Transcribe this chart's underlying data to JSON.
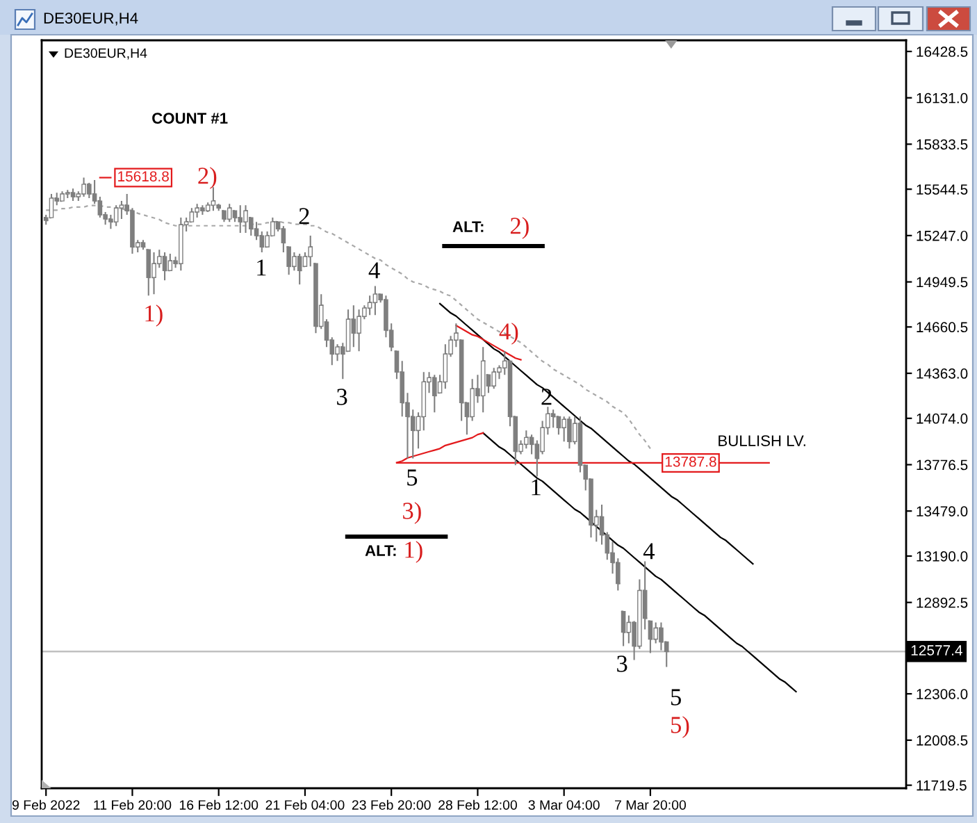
{
  "chart_data": {
    "type": "candlestick",
    "title": "DE30EUR,H4",
    "subtitle": "DE30EUR,H4",
    "categories": [
      "9 Feb 2022",
      null,
      null,
      null,
      null,
      null,
      null,
      null,
      null,
      null,
      null,
      null,
      null,
      null,
      null,
      null,
      "11 Feb 20:00",
      null,
      null,
      null,
      null,
      null,
      null,
      null,
      null,
      null,
      null,
      null,
      null,
      null,
      null,
      null,
      "16 Feb 12:00",
      null,
      null,
      null,
      null,
      null,
      null,
      null,
      null,
      null,
      null,
      null,
      null,
      null,
      null,
      null,
      "21 Feb 04:00",
      null,
      null,
      null,
      null,
      null,
      null,
      null,
      null,
      null,
      null,
      null,
      null,
      null,
      null,
      null,
      "23 Feb 20:00",
      null,
      null,
      null,
      null,
      null,
      null,
      null,
      null,
      null,
      null,
      null,
      null,
      null,
      null,
      null,
      "28 Feb 12:00",
      null,
      null,
      null,
      null,
      null,
      null,
      null,
      null,
      null,
      null,
      null,
      null,
      null,
      null,
      null,
      "3 Mar 04:00",
      null,
      null,
      null,
      null,
      null,
      null,
      null,
      null,
      null,
      null,
      null,
      null,
      null,
      null,
      null,
      "7 Mar 20:00",
      null,
      null,
      null,
      null,
      null,
      null,
      null,
      null,
      null,
      null,
      null,
      null,
      null,
      null,
      null,
      null,
      null,
      null,
      null,
      null,
      null,
      null,
      null,
      null,
      null,
      null,
      null,
      null,
      null,
      null,
      null,
      null,
      null,
      null,
      null,
      null,
      null,
      null,
      null,
      null,
      null,
      null,
      null,
      null,
      null,
      null,
      null
    ],
    "ohlc": [
      [
        15362,
        15380,
        15317,
        15344
      ],
      [
        15362,
        15514,
        15362,
        15487
      ],
      [
        15487,
        15522,
        15442,
        15469
      ],
      [
        15469,
        15531,
        15469,
        15514
      ],
      [
        15514,
        15540,
        15487,
        15522
      ],
      [
        15522,
        15549,
        15469,
        15496
      ],
      [
        15496,
        15531,
        15469,
        15514
      ],
      [
        15514,
        15618.8,
        15496,
        15576
      ],
      [
        15576,
        15585,
        15487,
        15514
      ],
      [
        15514,
        15603,
        15451,
        15469
      ],
      [
        15469,
        15496,
        15362,
        15380
      ],
      [
        15380,
        15398,
        15317,
        15353
      ],
      [
        15353,
        15380,
        15290,
        15335
      ],
      [
        15335,
        15442,
        15308,
        15424
      ],
      [
        15424,
        15469,
        15353,
        15442
      ],
      [
        15442,
        15514,
        15380,
        15406
      ],
      [
        15406,
        15424,
        15130,
        15174
      ],
      [
        15174,
        15219,
        15139,
        15201
      ],
      [
        15201,
        15219,
        15156,
        15174
      ],
      [
        15156,
        15156,
        14862,
        14978
      ],
      [
        14978,
        15139,
        14871,
        15067
      ],
      [
        15067,
        15156,
        15040,
        15112
      ],
      [
        15112,
        15139,
        14960,
        15022
      ],
      [
        15022,
        15130,
        15022,
        15085
      ],
      [
        15085,
        15112,
        15040,
        15067
      ],
      [
        15067,
        15362,
        15022,
        15317
      ],
      [
        15317,
        15362,
        15273,
        15335
      ],
      [
        15335,
        15424,
        15335,
        15398
      ],
      [
        15398,
        15451,
        15362,
        15424
      ],
      [
        15424,
        15442,
        15380,
        15406
      ],
      [
        15406,
        15460,
        15398,
        15442
      ],
      [
        15442,
        15558,
        15406,
        15469
      ],
      [
        15442,
        15451,
        15406,
        15424
      ],
      [
        15406,
        15406,
        15335,
        15353
      ],
      [
        15353,
        15451,
        15335,
        15424
      ],
      [
        15406,
        15406,
        15335,
        15362
      ],
      [
        15362,
        15442,
        15264,
        15335
      ],
      [
        15335,
        15442,
        15264,
        15406
      ],
      [
        15362,
        15362,
        15246,
        15290
      ],
      [
        15290,
        15335,
        15219,
        15246
      ],
      [
        15246,
        15273,
        15139,
        15174
      ],
      [
        15174,
        15273,
        15174,
        15246
      ],
      [
        15246,
        15362,
        15246,
        15335
      ],
      [
        15335,
        15335,
        15273,
        15290
      ],
      [
        15290,
        15308,
        15139,
        15201
      ],
      [
        15174,
        15174,
        14996,
        15049
      ],
      [
        15049,
        15139,
        15022,
        15112
      ],
      [
        15112,
        15130,
        14933,
        15022
      ],
      [
        15049,
        15139,
        15049,
        15112
      ],
      [
        15112,
        15246,
        15049,
        15174
      ],
      [
        15067,
        15067,
        14621,
        14665
      ],
      [
        14665,
        14871,
        14648,
        14799
      ],
      [
        14692,
        14710,
        14532,
        14576
      ],
      [
        14576,
        14594,
        14416,
        14487
      ],
      [
        14487,
        14549,
        14442,
        14532
      ],
      [
        14532,
        14558,
        14326,
        14487
      ],
      [
        14505,
        14773,
        14505,
        14710
      ],
      [
        14710,
        14799,
        14532,
        14621
      ],
      [
        14621,
        14773,
        14505,
        14728
      ],
      [
        14728,
        14799,
        14710,
        14782
      ],
      [
        14782,
        14862,
        14737,
        14817
      ],
      [
        14817,
        14923,
        14737,
        14871
      ],
      [
        14871,
        14871,
        14817,
        14835
      ],
      [
        14835,
        14862,
        14594,
        14639
      ],
      [
        14639,
        14683,
        14505,
        14532
      ],
      [
        14505,
        14505,
        14326,
        14371
      ],
      [
        14371,
        14442,
        14085,
        14174
      ],
      [
        14174,
        14237,
        13817,
        14085
      ],
      [
        14085,
        14130,
        13817,
        13996
      ],
      [
        13996,
        14112,
        13880,
        14085
      ],
      [
        14085,
        14371,
        13996,
        14308
      ],
      [
        14308,
        14371,
        14237,
        14335
      ],
      [
        14335,
        14353,
        14112,
        14219
      ],
      [
        14237,
        14353,
        14237,
        14308
      ],
      [
        14308,
        14549,
        14264,
        14487
      ],
      [
        14487,
        14603,
        14469,
        14576
      ],
      [
        14576,
        14683,
        14532,
        14621
      ],
      [
        14576,
        14576,
        14058,
        14174
      ],
      [
        14174,
        14174,
        13969,
        14085
      ],
      [
        14085,
        14326,
        14058,
        14264
      ],
      [
        14264,
        14353,
        14174,
        14219
      ],
      [
        14219,
        14532,
        14112,
        14442
      ],
      [
        14353,
        14353,
        14237,
        14282
      ],
      [
        14282,
        14398,
        14264,
        14371
      ],
      [
        14371,
        14415,
        14326,
        14398
      ],
      [
        14398,
        14505,
        14353,
        14442
      ],
      [
        14442,
        14442,
        14023,
        14085
      ],
      [
        14085,
        14085,
        13773,
        13862
      ],
      [
        13862,
        13933,
        13844,
        13907
      ],
      [
        13907,
        13996,
        13880,
        13951
      ],
      [
        13951,
        13969,
        13844,
        13907
      ],
      [
        13907,
        13933,
        13701,
        13817
      ],
      [
        13862,
        14058,
        13844,
        14014
      ],
      [
        14014,
        14148,
        13969,
        14103
      ],
      [
        14103,
        14130,
        14014,
        14085
      ],
      [
        14085,
        14085,
        13969,
        14014
      ],
      [
        14014,
        14085,
        13925,
        14067
      ],
      [
        14067,
        14085,
        13880,
        13925
      ],
      [
        13925,
        14085,
        13907,
        14041
      ],
      [
        14041,
        14085,
        13728,
        13773
      ],
      [
        13773,
        13773,
        13612,
        13684
      ],
      [
        13684,
        13684,
        13309,
        13389
      ],
      [
        13389,
        13487,
        13282,
        13442
      ],
      [
        13442,
        13520,
        13264,
        13326
      ],
      [
        13326,
        13344,
        13166,
        13210
      ],
      [
        13210,
        13282,
        13077,
        13148
      ],
      [
        13148,
        13175,
        12969,
        13014
      ],
      [
        12835,
        12835,
        12612,
        12701
      ],
      [
        12701,
        12808,
        12630,
        12764
      ],
      [
        12764,
        12773,
        12523,
        12612
      ],
      [
        12612,
        13041,
        12594,
        12969
      ],
      [
        12969,
        13157,
        12719,
        12791
      ],
      [
        12773,
        12773,
        12568,
        12657
      ],
      [
        12657,
        12764,
        12630,
        12728
      ],
      [
        12728,
        12764,
        12585,
        12639
      ],
      [
        12639,
        12639,
        12478,
        12577.4
      ],
      null,
      null,
      null,
      null,
      null,
      null,
      null,
      null,
      null,
      null,
      null,
      null,
      null,
      null,
      null,
      null,
      null,
      null,
      null,
      null,
      null,
      null,
      null,
      null,
      null,
      null,
      null,
      null,
      null,
      null,
      null,
      null,
      null,
      null,
      null,
      null,
      null,
      null,
      null,
      null,
      null,
      null,
      null,
      null
    ],
    "color": "#7f7f7f",
    "series": [
      {
        "type": "line",
        "color": "#a8a8a8",
        "line_style": "dashed",
        "values": [
          15410,
          15410,
          15410,
          15420,
          15420,
          15430,
          15430,
          15430,
          15440,
          15440,
          15440,
          15430,
          15430,
          15420,
          15420,
          15410,
          15410,
          15390,
          15380,
          15370,
          15360,
          15350,
          15330,
          15320,
          15310,
          15310,
          15310,
          15310,
          15310,
          15310,
          15310,
          15310,
          15310,
          15310,
          15310,
          15310,
          15310,
          15310,
          15320,
          15320,
          15320,
          15330,
          15330,
          15340,
          15330,
          15330,
          15320,
          15320,
          15320,
          15310,
          15310,
          15290,
          15270,
          15260,
          15240,
          15220,
          15200,
          15180,
          15160,
          15140,
          15120,
          15100,
          15090,
          15060,
          15040,
          15020,
          15000,
          14970,
          14950,
          14940,
          14930,
          14910,
          14900,
          14890,
          14870,
          14860,
          14830,
          14800,
          14770,
          14740,
          14710,
          14690,
          14670,
          14650,
          14630,
          14620,
          14600,
          14580,
          14560,
          14530,
          14500,
          14470,
          14440,
          14420,
          14390,
          14370,
          14350,
          14330,
          14310,
          14290,
          14260,
          14240,
          14220,
          14200,
          14180,
          14150,
          14130,
          14110,
          14070,
          14020,
          13970,
          13930,
          13880,
          null,
          null,
          null,
          null,
          null,
          null,
          null,
          null,
          null,
          null,
          null,
          null,
          null,
          null,
          null,
          null,
          null,
          null,
          null,
          null,
          null,
          null,
          null,
          null,
          null,
          null,
          null,
          null,
          null,
          null,
          null,
          null,
          null,
          null,
          null,
          null,
          null,
          null,
          null,
          null,
          null,
          null,
          null,
          null,
          null,
          null,
          null
        ]
      },
      {
        "type": "line",
        "color": "#000000",
        "values": [
          null,
          null,
          null,
          null,
          null,
          null,
          null,
          null,
          null,
          null,
          null,
          null,
          null,
          null,
          null,
          null,
          null,
          null,
          null,
          null,
          null,
          null,
          null,
          null,
          null,
          null,
          null,
          null,
          null,
          null,
          null,
          null,
          null,
          null,
          null,
          null,
          null,
          null,
          null,
          null,
          null,
          null,
          null,
          null,
          null,
          null,
          null,
          null,
          null,
          null,
          null,
          null,
          null,
          null,
          null,
          null,
          null,
          null,
          null,
          null,
          null,
          null,
          null,
          null,
          null,
          null,
          null,
          null,
          null,
          null,
          null,
          null,
          null,
          14810,
          14780,
          14750,
          14730,
          14700,
          14670,
          14640,
          14610,
          14580,
          14550,
          14520,
          14500,
          14470,
          14440,
          14410,
          14380,
          14350,
          14320,
          14290,
          14270,
          14240,
          14210,
          14180,
          14150,
          14120,
          14090,
          14060,
          14030,
          14010,
          13980,
          13950,
          13920,
          13890,
          13860,
          13830,
          13800,
          13780,
          13750,
          13720,
          13690,
          13660,
          13630,
          13600,
          13570,
          13550,
          13520,
          13490,
          13460,
          13430,
          13400,
          13370,
          13340,
          13310,
          13290,
          13260,
          13230,
          13200,
          13170,
          13140,
          null,
          null,
          null,
          null,
          null,
          null,
          null,
          null,
          null,
          null,
          null,
          null,
          null,
          null,
          null,
          null,
          null,
          null,
          null,
          null,
          null,
          null,
          null,
          null,
          null,
          null,
          null,
          null
        ]
      },
      {
        "type": "line",
        "color": "#000000",
        "values": [
          null,
          null,
          null,
          null,
          null,
          null,
          null,
          null,
          null,
          null,
          null,
          null,
          null,
          null,
          null,
          null,
          null,
          null,
          null,
          null,
          null,
          null,
          null,
          null,
          null,
          null,
          null,
          null,
          null,
          null,
          null,
          null,
          null,
          null,
          null,
          null,
          null,
          null,
          null,
          null,
          null,
          null,
          null,
          null,
          null,
          null,
          null,
          null,
          null,
          null,
          null,
          null,
          null,
          null,
          null,
          null,
          null,
          null,
          null,
          null,
          null,
          null,
          null,
          null,
          null,
          null,
          null,
          null,
          null,
          null,
          null,
          null,
          null,
          null,
          null,
          null,
          null,
          null,
          null,
          null,
          null,
          13980,
          13950,
          13920,
          13890,
          13870,
          13840,
          13810,
          13780,
          13750,
          13720,
          13690,
          13670,
          13640,
          13610,
          13580,
          13550,
          13520,
          13490,
          13470,
          13440,
          13410,
          13380,
          13350,
          13320,
          13290,
          13260,
          13240,
          13210,
          13180,
          13150,
          13120,
          13090,
          13060,
          13040,
          13010,
          12980,
          12950,
          12920,
          12890,
          12860,
          12830,
          12810,
          12780,
          12750,
          12720,
          12690,
          12660,
          12630,
          12610,
          12580,
          12550,
          12520,
          12490,
          12460,
          12430,
          12400,
          12380,
          12350,
          12320,
          null,
          null,
          null,
          null,
          null,
          null,
          null,
          null,
          null,
          null,
          null,
          null,
          null,
          null,
          null,
          null,
          null,
          null,
          null,
          null
        ]
      },
      {
        "type": "line",
        "color": "#e31a1c",
        "values": [
          null,
          null,
          null,
          null,
          null,
          null,
          null,
          null,
          null,
          null,
          null,
          null,
          null,
          null,
          null,
          null,
          null,
          null,
          null,
          null,
          null,
          null,
          null,
          null,
          null,
          null,
          null,
          null,
          null,
          null,
          null,
          null,
          null,
          null,
          null,
          null,
          null,
          null,
          null,
          null,
          null,
          null,
          null,
          null,
          null,
          null,
          null,
          null,
          null,
          null,
          null,
          null,
          null,
          null,
          null,
          null,
          null,
          null,
          null,
          null,
          null,
          null,
          null,
          null,
          null,
          null,
          null,
          null,
          null,
          null,
          null,
          null,
          null,
          null,
          null,
          null,
          14670,
          14650,
          14630,
          14610,
          14600,
          14580,
          14560,
          14540,
          14520,
          14500,
          14480,
          14460,
          14450,
          null,
          null,
          null,
          null,
          null,
          null,
          null,
          null,
          null,
          null,
          null,
          null,
          null,
          null,
          null,
          null,
          null,
          null,
          null,
          null,
          null,
          null,
          null,
          null,
          null,
          null,
          null,
          null,
          null,
          null,
          null,
          null,
          null,
          null,
          null,
          null,
          null,
          null,
          null,
          null,
          null,
          null,
          null,
          null,
          null,
          null,
          null,
          null,
          null,
          null,
          null,
          null,
          null,
          null,
          null,
          null,
          null,
          null,
          null,
          null,
          null,
          null,
          null,
          null,
          null,
          null,
          null,
          null,
          null,
          null,
          null
        ]
      },
      {
        "type": "line",
        "color": "#e31a1c",
        "values": [
          null,
          null,
          null,
          null,
          null,
          null,
          null,
          null,
          null,
          null,
          null,
          null,
          null,
          null,
          null,
          null,
          null,
          null,
          null,
          null,
          null,
          null,
          null,
          null,
          null,
          null,
          null,
          null,
          null,
          null,
          null,
          null,
          null,
          null,
          null,
          null,
          null,
          null,
          null,
          null,
          null,
          null,
          null,
          null,
          null,
          null,
          null,
          null,
          null,
          null,
          null,
          null,
          null,
          null,
          null,
          null,
          null,
          null,
          null,
          null,
          null,
          null,
          null,
          null,
          null,
          13790,
          13800,
          13820,
          13830,
          13840,
          13850,
          13860,
          13870,
          13880,
          13900,
          13910,
          13920,
          13930,
          13940,
          13950,
          13970,
          13980,
          null,
          null,
          null,
          null,
          null,
          null,
          null,
          null,
          null,
          null,
          null,
          null,
          null,
          null,
          null,
          null,
          null,
          null,
          null,
          null,
          null,
          null,
          null,
          null,
          null,
          null,
          null,
          null,
          null,
          null,
          null,
          null,
          null,
          null,
          null,
          null,
          null,
          null,
          null,
          null,
          null,
          null,
          null,
          null,
          null,
          null,
          null,
          null,
          null,
          null,
          null,
          null,
          null,
          null,
          null,
          null,
          null,
          null,
          null,
          null,
          null,
          null,
          null,
          null,
          null,
          null,
          null,
          null,
          null,
          null,
          null,
          null,
          null,
          null,
          null,
          null,
          null,
          null
        ]
      },
      {
        "type": "line",
        "name": "13787.8",
        "color": "#e31a1c",
        "values": [
          null,
          null,
          null,
          null,
          null,
          null,
          null,
          null,
          null,
          null,
          null,
          null,
          null,
          null,
          null,
          null,
          null,
          null,
          null,
          null,
          null,
          null,
          null,
          null,
          null,
          null,
          null,
          null,
          null,
          null,
          null,
          null,
          null,
          null,
          null,
          null,
          null,
          null,
          null,
          null,
          null,
          null,
          null,
          null,
          null,
          null,
          null,
          null,
          null,
          null,
          null,
          null,
          null,
          null,
          null,
          null,
          null,
          null,
          null,
          null,
          null,
          null,
          null,
          null,
          null,
          13787.8,
          13787.8,
          13787.8,
          13787.8,
          13787.8,
          13787.8,
          13787.8,
          13787.8,
          13787.8,
          13787.8,
          13787.8,
          13787.8,
          13787.8,
          13787.8,
          13787.8,
          13787.8,
          13787.8,
          13787.8,
          13787.8,
          13787.8,
          13787.8,
          13787.8,
          13787.8,
          13787.8,
          13787.8,
          13787.8,
          13787.8,
          13787.8,
          13787.8,
          13787.8,
          13787.8,
          13787.8,
          13787.8,
          13787.8,
          13787.8,
          13787.8,
          13787.8,
          13787.8,
          13787.8,
          13787.8,
          13787.8,
          13787.8,
          13787.8,
          13787.8,
          13787.8,
          13787.8,
          13787.8,
          13787.8,
          13787.8,
          13787.8,
          13787.8,
          13787.8,
          13787.8,
          13787.8,
          13787.8,
          13787.8,
          13787.8,
          13787.8,
          13787.8,
          13787.8,
          13787.8,
          13787.8,
          13787.8,
          13787.8,
          13787.8,
          13787.8,
          13787.8,
          13787.8,
          13787.8,
          13787.8,
          null,
          null,
          null,
          null,
          null,
          null,
          null,
          null,
          null,
          null,
          null,
          null,
          null,
          null,
          null,
          null,
          null,
          null,
          null,
          null,
          null,
          null,
          null,
          null,
          null
        ]
      },
      {
        "type": "line",
        "name": "15618.8",
        "color": "#e31a1c",
        "values": [
          null,
          null,
          null,
          null,
          null,
          null,
          null,
          null,
          null,
          null,
          15618.8,
          15618.8,
          15618.8,
          null,
          null,
          null,
          null,
          null,
          null,
          null,
          null,
          null,
          null,
          null,
          null,
          null,
          null,
          null,
          null,
          null,
          null,
          null,
          null,
          null,
          null,
          null,
          null,
          null,
          null,
          null,
          null,
          null,
          null,
          null,
          null,
          null,
          null,
          null,
          null,
          null,
          null,
          null,
          null,
          null,
          null,
          null,
          null,
          null,
          null,
          null,
          null,
          null,
          null,
          null,
          null,
          null,
          null,
          null,
          null,
          null,
          null,
          null,
          null,
          null,
          null,
          null,
          null,
          null,
          null,
          null,
          null,
          null,
          null,
          null,
          null,
          null,
          null,
          null,
          null,
          null,
          null,
          null,
          null,
          null,
          null,
          null,
          null,
          null,
          null,
          null,
          null,
          null,
          null,
          null,
          null,
          null,
          null,
          null,
          null,
          null,
          null,
          null,
          null,
          null,
          null,
          null,
          null,
          null,
          null,
          null,
          null,
          null,
          null,
          null,
          null,
          null,
          null,
          null,
          null,
          null,
          null,
          null,
          null,
          null,
          null,
          null,
          null,
          null,
          null,
          null,
          null,
          null,
          null,
          null,
          null,
          null,
          null,
          null,
          null,
          null,
          null,
          null,
          null,
          null,
          null,
          null,
          null,
          null,
          null,
          null
        ]
      }
    ],
    "ylim": [
      11700,
      16500
    ],
    "yticks": [
      16428.5,
      {
        "value": 16131,
        "label": "16131.0"
      },
      15833.5,
      15544.5,
      {
        "value": 15247,
        "label": "15247.0"
      },
      14949.5,
      14660.5,
      {
        "value": 14363,
        "label": "14363.0"
      },
      {
        "value": 14074,
        "label": "14074.0"
      },
      13776.5,
      {
        "value": 13479,
        "label": "13479.0"
      },
      {
        "value": 13190,
        "label": "13190.0"
      },
      12892.5,
      {
        "value": 12306,
        "label": "12306.0"
      },
      12008.5,
      11719.5
    ],
    "ref_lines": [
      {
        "axis": "y",
        "value": 12577.4,
        "label": "12577.4",
        "color": "#c0c0c0"
      }
    ],
    "line_style": "solid",
    "annotations": [
      "COUNT #1",
      "2)",
      "2",
      "1",
      "1)",
      "ALT:",
      "2)",
      "4",
      "3",
      "4)",
      "2",
      "BULLISH LV.",
      "5",
      "1",
      "3)",
      "ALT:",
      "1)",
      "4",
      "3",
      "5",
      "5)"
    ]
  }
}
